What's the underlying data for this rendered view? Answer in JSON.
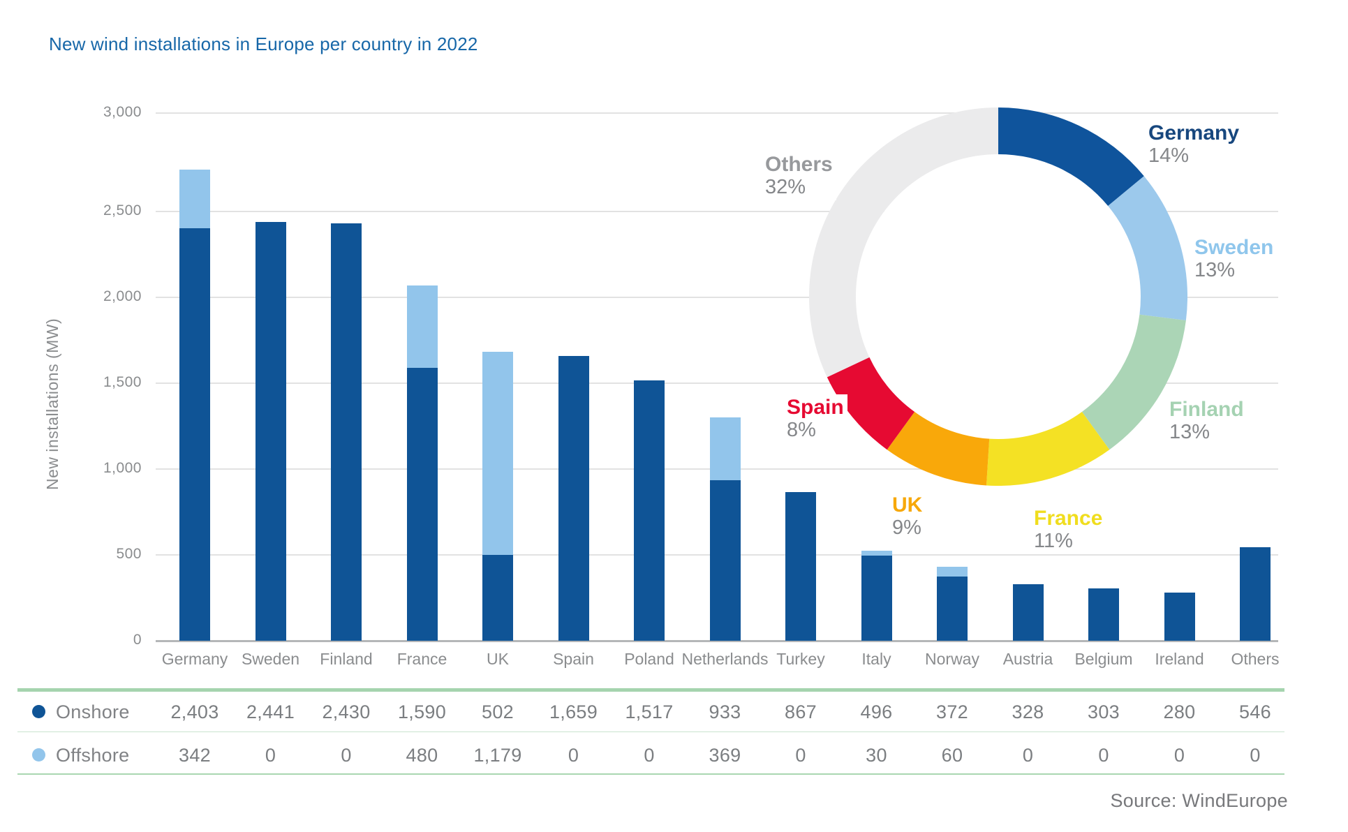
{
  "title": "New wind installations in Europe per country in 2022",
  "y_axis": {
    "title": "New installations (MW)",
    "ticks": [
      "3,000",
      "2,500",
      "2,000",
      "1,500",
      "1,000",
      "500",
      "0"
    ]
  },
  "source": "Source: WindEurope",
  "colors": {
    "title_text": "#1767A8",
    "axis_text": "#8A8C8E",
    "grid": "#E2E2E2",
    "axis_line": "#B4B6B8",
    "onshore": "#0F5496",
    "offshore": "#92C5EB",
    "table_border_top": "#A5D4AE",
    "table_border_inner": "#C9E4CE",
    "table_border_bottom": "#A9D6B1",
    "table_text": "#7B7E81",
    "donut_percent_text": "#85878A"
  },
  "table": {
    "columns": [
      "Germany",
      "Sweden",
      "Finland",
      "France",
      "UK",
      "Spain",
      "Poland",
      "Netherlands",
      "Turkey",
      "Italy",
      "Norway",
      "Austria",
      "Belgium",
      "Ireland",
      "Others"
    ],
    "rows": [
      {
        "label": "Onshore",
        "dot_color": "#0F5496",
        "values": [
          "2,403",
          "2,441",
          "2,430",
          "1,590",
          "502",
          "1,659",
          "1,517",
          "933",
          "867",
          "496",
          "372",
          "328",
          "303",
          "280",
          "546"
        ]
      },
      {
        "label": "Offshore",
        "dot_color": "#92C5EB",
        "values": [
          "342",
          "0",
          "0",
          "480",
          "1,179",
          "0",
          "0",
          "369",
          "0",
          "30",
          "60",
          "0",
          "0",
          "0",
          "0"
        ]
      }
    ]
  },
  "chart_data": [
    {
      "type": "bar",
      "stacked": true,
      "title": "New wind installations in Europe per country in 2022",
      "xlabel": "",
      "ylabel": "New installations (MW)",
      "ylim": [
        0,
        3000
      ],
      "grid": true,
      "categories": [
        "Germany",
        "Sweden",
        "Finland",
        "France",
        "UK",
        "Spain",
        "Poland",
        "Netherlands",
        "Turkey",
        "Italy",
        "Norway",
        "Austria",
        "Belgium",
        "Ireland",
        "Others"
      ],
      "series": [
        {
          "name": "Onshore",
          "color": "#0F5496",
          "values": [
            2403,
            2441,
            2430,
            1590,
            502,
            1659,
            1517,
            933,
            867,
            496,
            372,
            328,
            303,
            280,
            546
          ]
        },
        {
          "name": "Offshore",
          "color": "#92C5EB",
          "values": [
            342,
            0,
            0,
            480,
            1179,
            0,
            0,
            369,
            0,
            30,
            60,
            0,
            0,
            0,
            0
          ]
        }
      ]
    },
    {
      "type": "pie",
      "donut": true,
      "legend_position": "around",
      "segments": [
        {
          "label": "Germany",
          "pct": 14,
          "pct_text": "14%",
          "color": "#0F549C",
          "label_color": "#17477E"
        },
        {
          "label": "Sweden",
          "pct": 13,
          "pct_text": "13%",
          "color": "#9CC9EC",
          "label_color": "#8FC6EC"
        },
        {
          "label": "Finland",
          "pct": 13,
          "pct_text": "13%",
          "color": "#ABD5B6",
          "label_color": "#A5D2B2"
        },
        {
          "label": "France",
          "pct": 11,
          "pct_text": "11%",
          "color": "#F4E124",
          "label_color": "#F0DD1E"
        },
        {
          "label": "UK",
          "pct": 9,
          "pct_text": "9%",
          "color": "#F9A80A",
          "label_color": "#F7A80A"
        },
        {
          "label": "Spain",
          "pct": 8,
          "pct_text": "8%",
          "color": "#E60A32",
          "label_color": "#E60A32"
        },
        {
          "label": "Others",
          "pct": 32,
          "pct_text": "32%",
          "color": "#EBEBEC",
          "label_color": "#97999C"
        }
      ]
    }
  ]
}
